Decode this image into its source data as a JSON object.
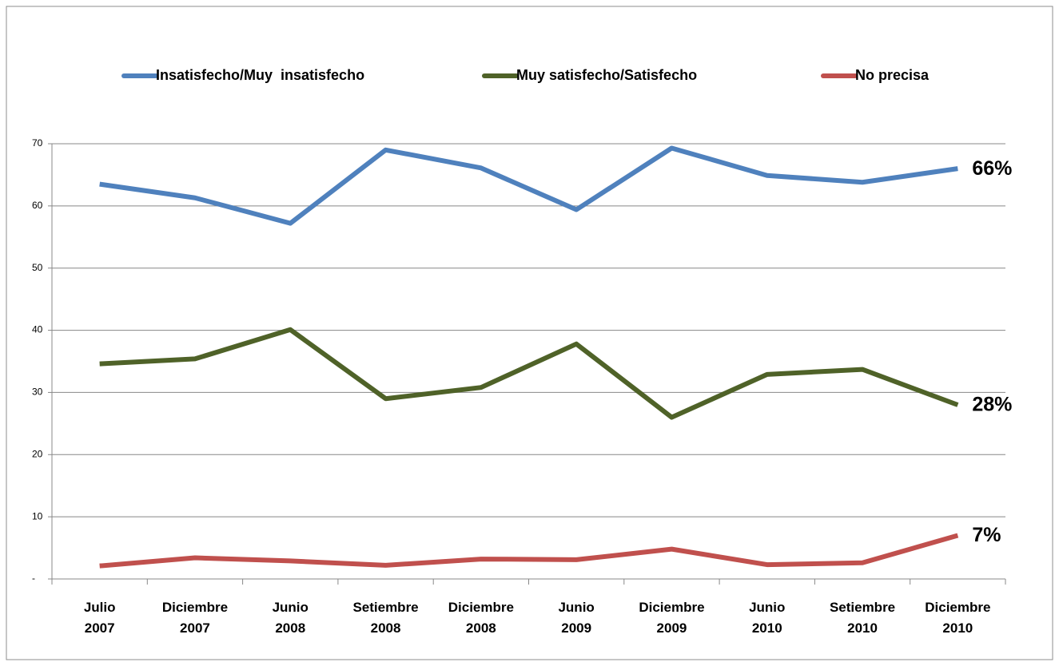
{
  "chart_data": {
    "type": "line",
    "categories": [
      "Julio 2007",
      "Diciembre 2007",
      "Junio 2008",
      "Setiembre 2008",
      "Diciembre 2008",
      "Junio 2009",
      "Diciembre 2009",
      "Junio 2010",
      "Setiembre 2010",
      "Diciembre 2010"
    ],
    "series": [
      {
        "name": "Insatisfecho/Muy  insatisfecho",
        "color": "#4f81bd",
        "values": [
          63.5,
          61.3,
          57.2,
          69,
          66.1,
          59.4,
          69.3,
          64.9,
          63.8,
          66
        ],
        "value_labels": [
          null,
          null,
          null,
          null,
          null,
          null,
          null,
          null,
          null,
          "66%"
        ]
      },
      {
        "name": "Muy satisfecho/Satisfecho",
        "color": "#4f6228",
        "values": [
          34.6,
          35.4,
          40.1,
          29,
          30.8,
          37.8,
          26,
          32.9,
          33.7,
          28
        ],
        "value_labels": [
          null,
          null,
          null,
          null,
          null,
          null,
          null,
          null,
          null,
          "28%"
        ]
      },
      {
        "name": "No precisa",
        "color": "#c0504d",
        "values": [
          2.1,
          3.4,
          2.9,
          2.2,
          3.2,
          3.1,
          4.8,
          2.3,
          2.6,
          7
        ],
        "value_labels": [
          null,
          null,
          null,
          null,
          null,
          null,
          null,
          null,
          null,
          "7%"
        ]
      }
    ],
    "ylim": [
      0,
      70
    ],
    "yticks": [
      {
        "value": 0,
        "label": "-"
      },
      10,
      20,
      30,
      40,
      50,
      60,
      70
    ],
    "grid": true,
    "legend": "top"
  }
}
